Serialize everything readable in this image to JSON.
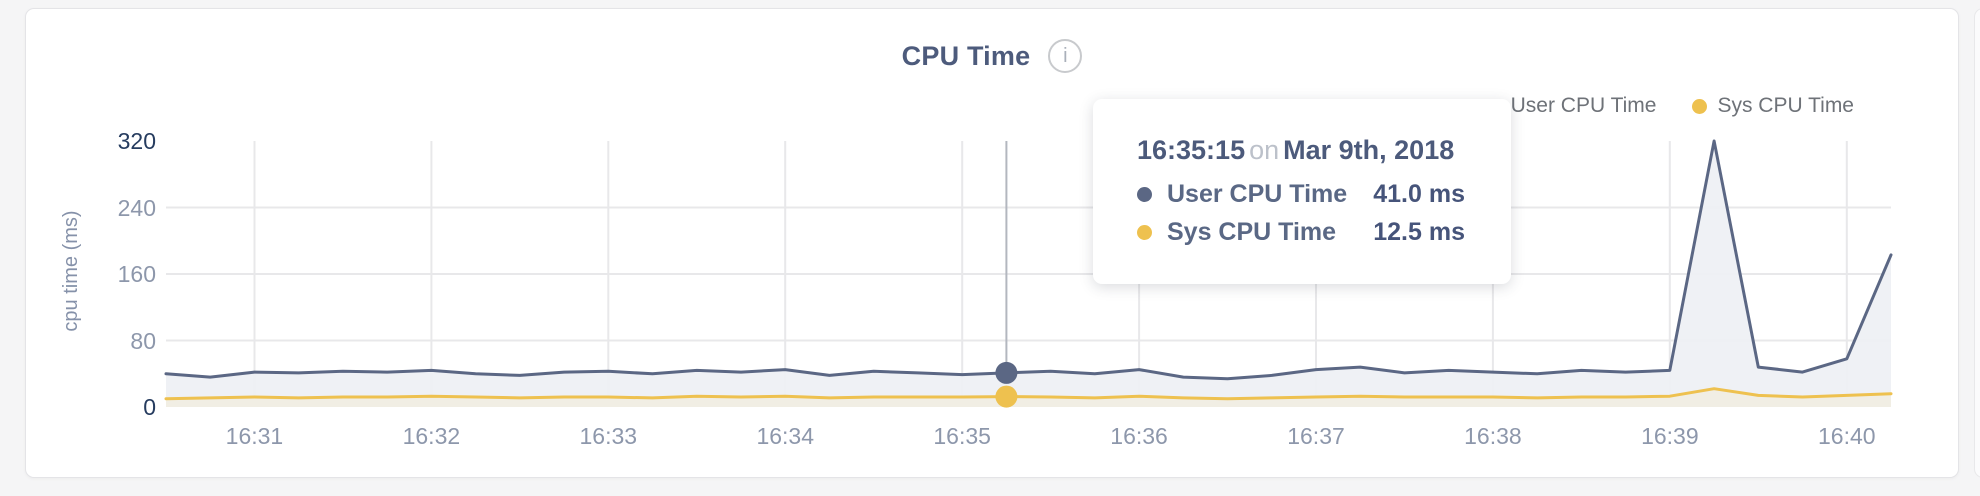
{
  "page": {
    "background": "#f5f5f6"
  },
  "card": {
    "title": "CPU Time",
    "info_icon": "i"
  },
  "legend": [
    {
      "label": "User CPU Time",
      "color": "#5b6784"
    },
    {
      "label": "Sys CPU Time",
      "color": "#eec14f"
    }
  ],
  "tooltip": {
    "time": "16:35:15",
    "conjunction": "on",
    "date": "Mar 9th, 2018",
    "rows": [
      {
        "label": "User CPU Time",
        "value": "41.0 ms",
        "color": "#5b6784"
      },
      {
        "label": "Sys CPU Time",
        "value": "12.5 ms",
        "color": "#eec14f"
      }
    ]
  },
  "chart_data": {
    "type": "area",
    "title": "CPU Time",
    "xlabel": "",
    "ylabel": "cpu time (ms)",
    "ylim": [
      0,
      320
    ],
    "y_ticks": [
      0,
      80,
      160,
      240,
      320
    ],
    "x_ticks": [
      "16:31",
      "16:32",
      "16:33",
      "16:34",
      "16:35",
      "16:36",
      "16:37",
      "16:38",
      "16:39",
      "16:40"
    ],
    "grid": true,
    "legend_position": "top-right",
    "x": [
      "16:30:30",
      "16:30:45",
      "16:31:00",
      "16:31:15",
      "16:31:30",
      "16:31:45",
      "16:32:00",
      "16:32:15",
      "16:32:30",
      "16:32:45",
      "16:33:00",
      "16:33:15",
      "16:33:30",
      "16:33:45",
      "16:34:00",
      "16:34:15",
      "16:34:30",
      "16:34:45",
      "16:35:00",
      "16:35:15",
      "16:35:30",
      "16:35:45",
      "16:36:00",
      "16:36:15",
      "16:36:30",
      "16:36:45",
      "16:37:00",
      "16:37:15",
      "16:37:30",
      "16:37:45",
      "16:38:00",
      "16:38:15",
      "16:38:30",
      "16:38:45",
      "16:39:00",
      "16:39:15",
      "16:39:30",
      "16:39:45",
      "16:40:00",
      "16:40:15"
    ],
    "series": [
      {
        "name": "User CPU Time",
        "color": "#5b6784",
        "fill": "#eef0f4",
        "values": [
          40,
          36,
          42,
          41,
          43,
          42,
          44,
          40,
          38,
          42,
          43,
          40,
          44,
          42,
          45,
          38,
          43,
          41,
          39,
          41,
          43,
          40,
          45,
          36,
          34,
          38,
          45,
          48,
          41,
          44,
          42,
          40,
          44,
          42,
          44,
          320,
          48,
          42,
          58,
          183
        ]
      },
      {
        "name": "Sys CPU Time",
        "color": "#eec14f",
        "fill": "#f1eee2",
        "values": [
          10,
          11,
          12,
          11,
          12,
          12,
          13,
          12,
          11,
          12,
          12,
          11,
          13,
          12,
          13,
          11,
          12,
          12,
          12,
          12.5,
          12,
          11,
          13,
          11,
          10,
          11,
          12,
          13,
          12,
          12,
          12,
          11,
          12,
          12,
          13,
          22,
          14,
          12,
          14,
          16
        ]
      }
    ],
    "hover_index": 19,
    "hover_point": {
      "time": "16:35:15",
      "date": "Mar 9th, 2018",
      "user_cpu_ms": 41.0,
      "sys_cpu_ms": 12.5
    },
    "colors": {
      "grid": "#e8e8ea",
      "crosshair": "#b3b7bf",
      "tick_label": "#8d97ab",
      "bound_label": "#263c5f"
    }
  }
}
